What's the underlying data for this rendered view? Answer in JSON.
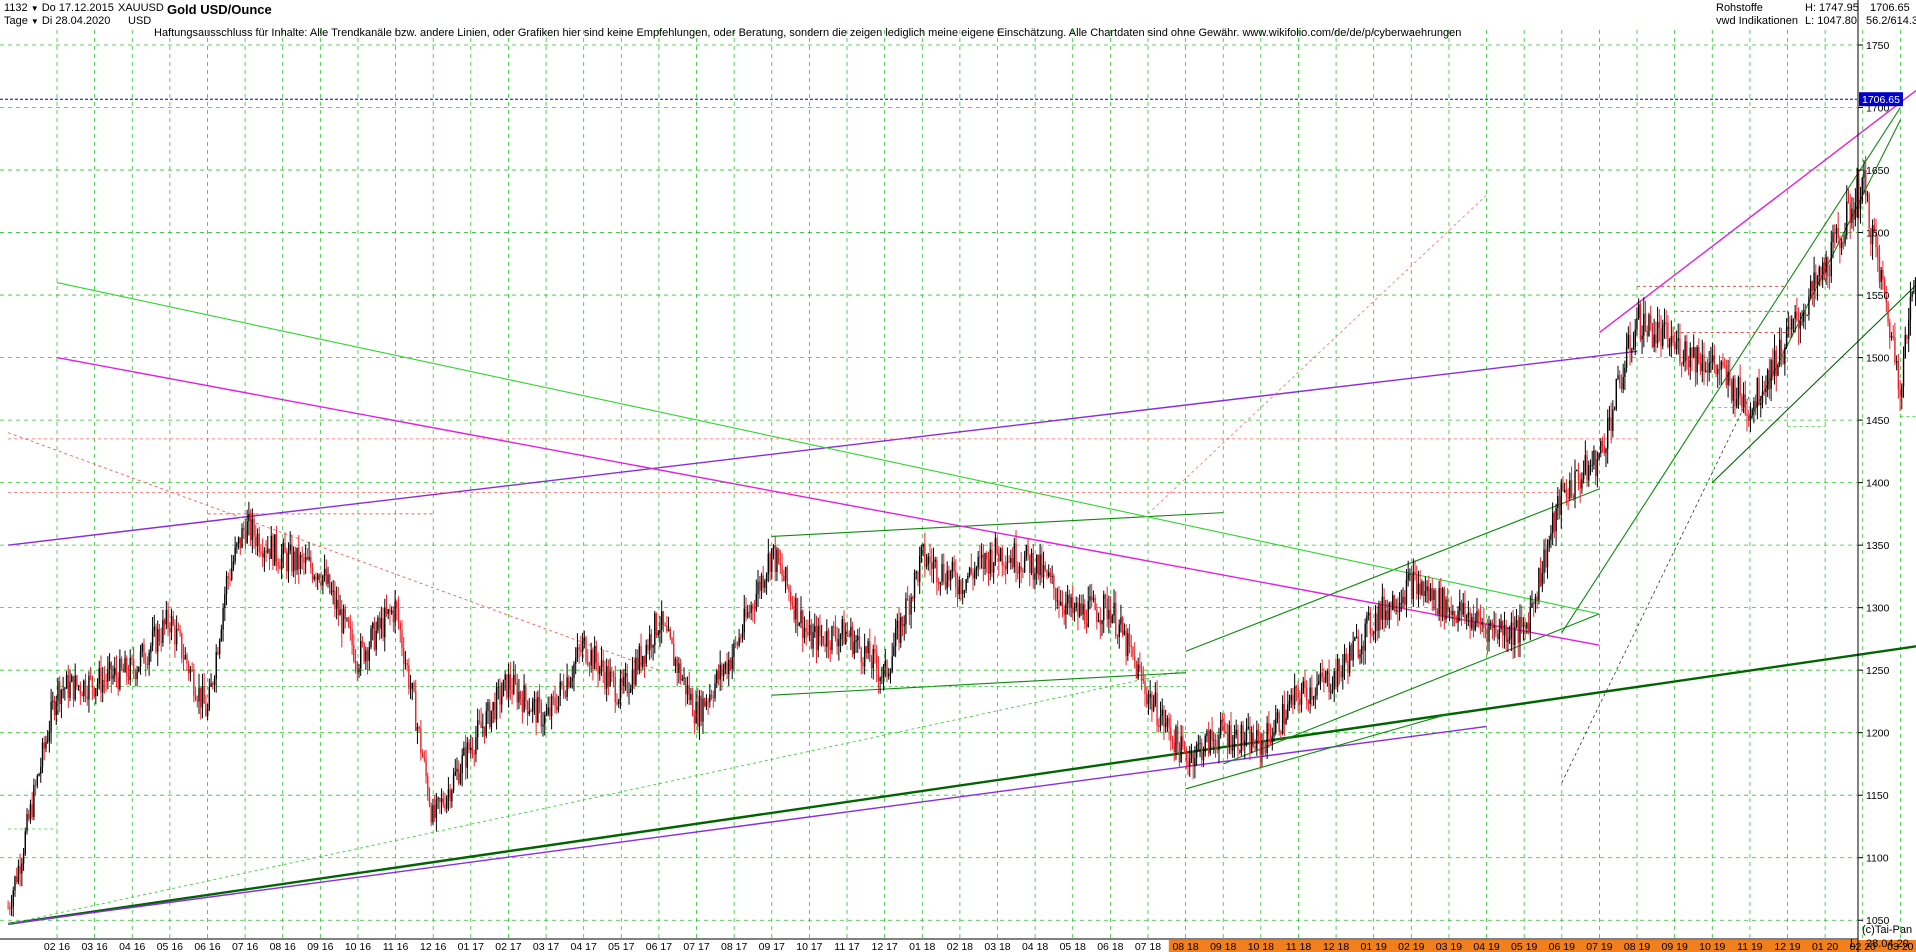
{
  "header": {
    "count": "1132",
    "range_from": "Do 17.12.2015",
    "interval": "Tage",
    "range_to": "Di 28.04.2020",
    "symbol": "XAUUSD",
    "currency": "USD",
    "title": "Gold USD/Ounce",
    "disclaimer": "Haftungsausschluss für Inhalte: Alle Trendkanäle bzw. andere Linien, oder Grafiken hier sind keine Empfehlungen, oder Beratung, sondern die zeigen lediglich meine eigene Einschätzung. Alle Chartdaten sind ohne Gewähr.  www.wikifolio.com/de/de/p/cyberwaehrungen",
    "category": "Rohstoffe",
    "source": "vwd Indikationen",
    "high_text": "H: 1747.95",
    "low_text": "L: 1047.80",
    "last_text": "1706.65",
    "ratio_text": "56.2/614.3",
    "copyright": "(c)Tai-Pan",
    "scale_mode": "L",
    "date_footer": "28.04.20"
  },
  "colors": {
    "up": "#000000",
    "down": "#e8232a",
    "grid": "#28c828",
    "purple": "#8a2be2",
    "magenta": "#e020e0",
    "price_line": "#0000c8",
    "price_box": "#0000cc",
    "month_band": "#f07f1c"
  },
  "chart_data": {
    "type": "candlestick",
    "title": "Gold USD/Ounce",
    "symbol": "XAUUSD",
    "ylim": [
      1035,
      1762
    ],
    "y_ticks": [
      1050,
      1100,
      1150,
      1200,
      1250,
      1300,
      1350,
      1400,
      1450,
      1500,
      1550,
      1600,
      1650,
      1700,
      1750
    ],
    "grid": true,
    "last_price": 1706.65,
    "last_price_label": "1706.65",
    "high": 1747.95,
    "low": 1047.8,
    "x_ticks": [
      "02 16",
      "03 16",
      "04 16",
      "05 16",
      "06 16",
      "07 16",
      "08 16",
      "09 16",
      "10 16",
      "11 16",
      "12 16",
      "01 17",
      "02 17",
      "03 17",
      "04 17",
      "05 17",
      "06 17",
      "07 17",
      "08 17",
      "09 17",
      "10 17",
      "11 17",
      "12 17",
      "01 18",
      "02 18",
      "03 18",
      "04 18",
      "05 18",
      "06 18",
      "07 18",
      "08 18",
      "09 18",
      "10 18",
      "11 18",
      "12 18",
      "01 19",
      "02 19",
      "03 19",
      "04 19",
      "05 19",
      "06 19",
      "07 19",
      "08 19",
      "09 19",
      "10 19",
      "11 19",
      "12 19",
      "01 20",
      "02 20",
      "03 20",
      "04 20",
      "05 20"
    ],
    "highlighted_months": [
      "08 18",
      "09 18",
      "10 18",
      "11 18",
      "12 18",
      "01 19",
      "02 19",
      "03 19",
      "04 19",
      "05 19",
      "06 19",
      "07 19",
      "08 19",
      "09 19",
      "10 19",
      "11 19",
      "12 19",
      "01 20",
      "02 20",
      "03 20",
      "04 20",
      "05 20"
    ],
    "series": [
      {
        "name": "Gold USD/Ounce",
        "price_path": [
          [
            "12 15",
            1060
          ],
          [
            "01 16",
            1095
          ],
          [
            "02 16",
            1235
          ],
          [
            "03 16",
            1240
          ],
          [
            "04 16",
            1250
          ],
          [
            "05 16",
            1290
          ],
          [
            "06 16",
            1215
          ],
          [
            "06 16",
            1320
          ],
          [
            "07 16",
            1365
          ],
          [
            "08 16",
            1340
          ],
          [
            "09 16",
            1330
          ],
          [
            "10 16",
            1260
          ],
          [
            "11 16",
            1300
          ],
          [
            "11 16",
            1220
          ],
          [
            "12 16",
            1130
          ],
          [
            "01 17",
            1190
          ],
          [
            "02 17",
            1240
          ],
          [
            "03 17",
            1210
          ],
          [
            "04 17",
            1270
          ],
          [
            "05 17",
            1230
          ],
          [
            "06 17",
            1290
          ],
          [
            "07 17",
            1215
          ],
          [
            "08 17",
            1265
          ],
          [
            "09 17",
            1345
          ],
          [
            "10 17",
            1275
          ],
          [
            "11 17",
            1280
          ],
          [
            "12 17",
            1245
          ],
          [
            "01 18",
            1340
          ],
          [
            "02 18",
            1320
          ],
          [
            "03 18",
            1345
          ],
          [
            "04 18",
            1335
          ],
          [
            "05 18",
            1295
          ],
          [
            "06 18",
            1300
          ],
          [
            "07 18",
            1230
          ],
          [
            "08 18",
            1180
          ],
          [
            "09 18",
            1200
          ],
          [
            "10 18",
            1190
          ],
          [
            "11 18",
            1230
          ],
          [
            "12 18",
            1245
          ],
          [
            "01 19",
            1290
          ],
          [
            "02 19",
            1320
          ],
          [
            "03 19",
            1300
          ],
          [
            "04 19",
            1285
          ],
          [
            "05 19",
            1280
          ],
          [
            "06 19",
            1390
          ],
          [
            "07 19",
            1420
          ],
          [
            "08 19",
            1530
          ],
          [
            "09 19",
            1510
          ],
          [
            "10 19",
            1495
          ],
          [
            "11 19",
            1460
          ],
          [
            "12 19",
            1515
          ],
          [
            "01 20",
            1570
          ],
          [
            "02 20",
            1640
          ],
          [
            "03 20",
            1480
          ],
          [
            "04 20",
            1700
          ],
          [
            "05 20",
            1710
          ]
        ]
      }
    ],
    "annotations": [
      "trend channels",
      "support / resistance lines"
    ]
  }
}
